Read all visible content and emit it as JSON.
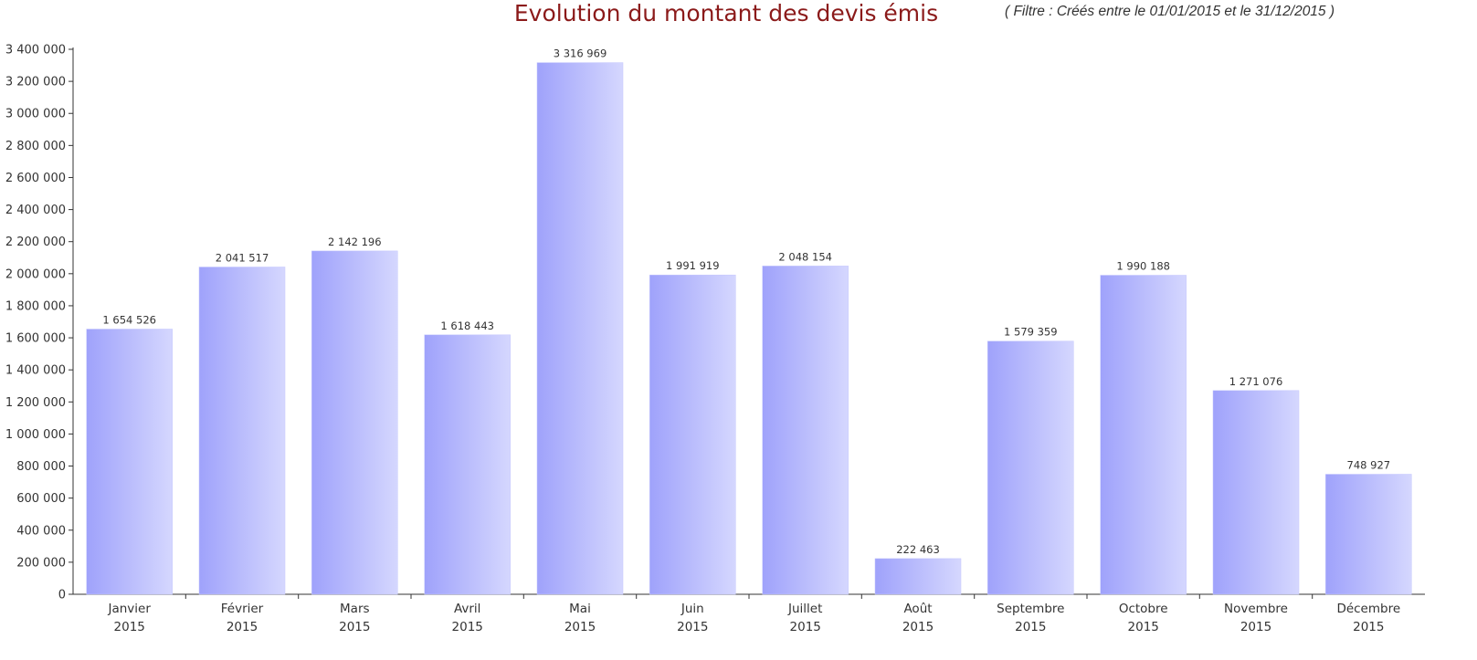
{
  "chart_data": {
    "type": "bar",
    "title": "Evolution du montant des devis émis",
    "filter_text": "( Filtre :  Créés entre le 01/01/2015 et le 31/12/2015 )",
    "categories": [
      "Janvier",
      "Février",
      "Mars",
      "Avril",
      "Mai",
      "Juin",
      "Juillet",
      "Août",
      "Septembre",
      "Octobre",
      "Novembre",
      "Décembre"
    ],
    "category_year": "2015",
    "values": [
      1654526,
      2041517,
      2142196,
      1618443,
      3316969,
      1991919,
      2048154,
      222463,
      1579359,
      1990188,
      1271076,
      748927
    ],
    "value_labels": [
      "1 654 526",
      "2 041 517",
      "2 142 196",
      "1 618 443",
      "3 316 969",
      "1 991 919",
      "2 048 154",
      "222 463",
      "1 579 359",
      "1 990 188",
      "1 271 076",
      "748 927"
    ],
    "y_ticks": [
      0,
      200000,
      400000,
      600000,
      800000,
      1000000,
      1200000,
      1400000,
      1600000,
      1800000,
      2000000,
      2200000,
      2400000,
      2600000,
      2800000,
      3000000,
      3200000,
      3400000
    ],
    "y_tick_labels": [
      "0",
      "200 000",
      "400 000",
      "600 000",
      "800 000",
      "1 000 000",
      "1 200 000",
      "1 400 000",
      "1 600 000",
      "1 800 000",
      "2 000 000",
      "2 200 000",
      "2 400 000",
      "2 600 000",
      "2 800 000",
      "3 000 000",
      "3 200 000",
      "3 400 000"
    ],
    "ylim": [
      0,
      3400000
    ],
    "xlabel": "",
    "ylabel": "",
    "grid": false,
    "legend": "none",
    "colors": {
      "bar_left": "#9fa2fb",
      "bar_right": "#d5d7fe",
      "title": "#8b1a1a",
      "axis": "#333333"
    }
  }
}
